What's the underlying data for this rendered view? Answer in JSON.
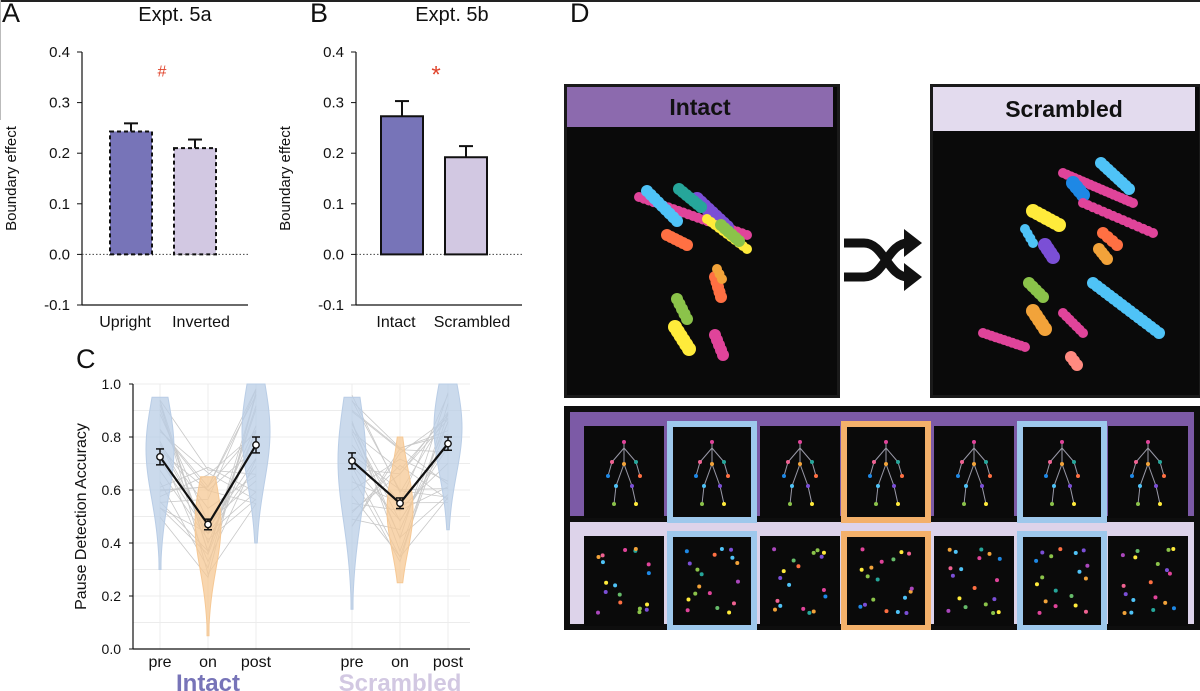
{
  "panels": {
    "A": {
      "letter": "A",
      "title": "Expt. 5a"
    },
    "B": {
      "letter": "B",
      "title": "Expt. 5b"
    },
    "C": {
      "letter": "C"
    },
    "D": {
      "letter": "D",
      "intact_label": "Intact",
      "scrambled_label": "Scrambled"
    }
  },
  "colors": {
    "dark_purple": "#7774b8",
    "light_purple": "#d2c8e2",
    "sig_red": "#e0442c",
    "pre_post_blue": "#b9cde6",
    "on_orange": "#f6c894",
    "head_dark": "#8c6aae",
    "head_light": "#e3dbee",
    "hl_blue": "#9ec8ec",
    "hl_orange": "#f3b06a"
  },
  "chart_data": [
    {
      "type": "bar",
      "panel": "A",
      "title": "Expt. 5a",
      "ylabel": "Boundary effect",
      "categories": [
        "Upright",
        "Inverted"
      ],
      "values": [
        0.243,
        0.21
      ],
      "errors": [
        0.016,
        0.017
      ],
      "bar_style": "dashed",
      "ylim": [
        -0.1,
        0.4
      ],
      "yticks": [
        "-0.1",
        "0.0",
        "0.1",
        "0.2",
        "0.3",
        "0.4"
      ],
      "significance": "#"
    },
    {
      "type": "bar",
      "panel": "B",
      "title": "Expt. 5b",
      "ylabel": "Boundary effect",
      "categories": [
        "Intact",
        "Scrambled"
      ],
      "values": [
        0.273,
        0.192
      ],
      "errors": [
        0.03,
        0.022
      ],
      "bar_style": "solid",
      "ylim": [
        -0.1,
        0.4
      ],
      "yticks": [
        "-0.1",
        "0.0",
        "0.1",
        "0.2",
        "0.3",
        "0.4"
      ],
      "significance": "*"
    },
    {
      "type": "line",
      "panel": "C",
      "ylabel": "Pause Detection Accuracy",
      "ylim": [
        0.0,
        1.0
      ],
      "yticks": [
        "0.0",
        "0.2",
        "0.4",
        "0.6",
        "0.8",
        "1.0"
      ],
      "groups": [
        {
          "name": "Intact",
          "categories": [
            "pre",
            "on",
            "post"
          ],
          "means": [
            0.725,
            0.47,
            0.77
          ],
          "errors": [
            0.03,
            0.02,
            0.03
          ]
        },
        {
          "name": "Scrambled",
          "categories": [
            "pre",
            "on",
            "post"
          ],
          "means": [
            0.71,
            0.55,
            0.775
          ],
          "errors": [
            0.03,
            0.02,
            0.025
          ]
        }
      ],
      "grid": true
    }
  ]
}
